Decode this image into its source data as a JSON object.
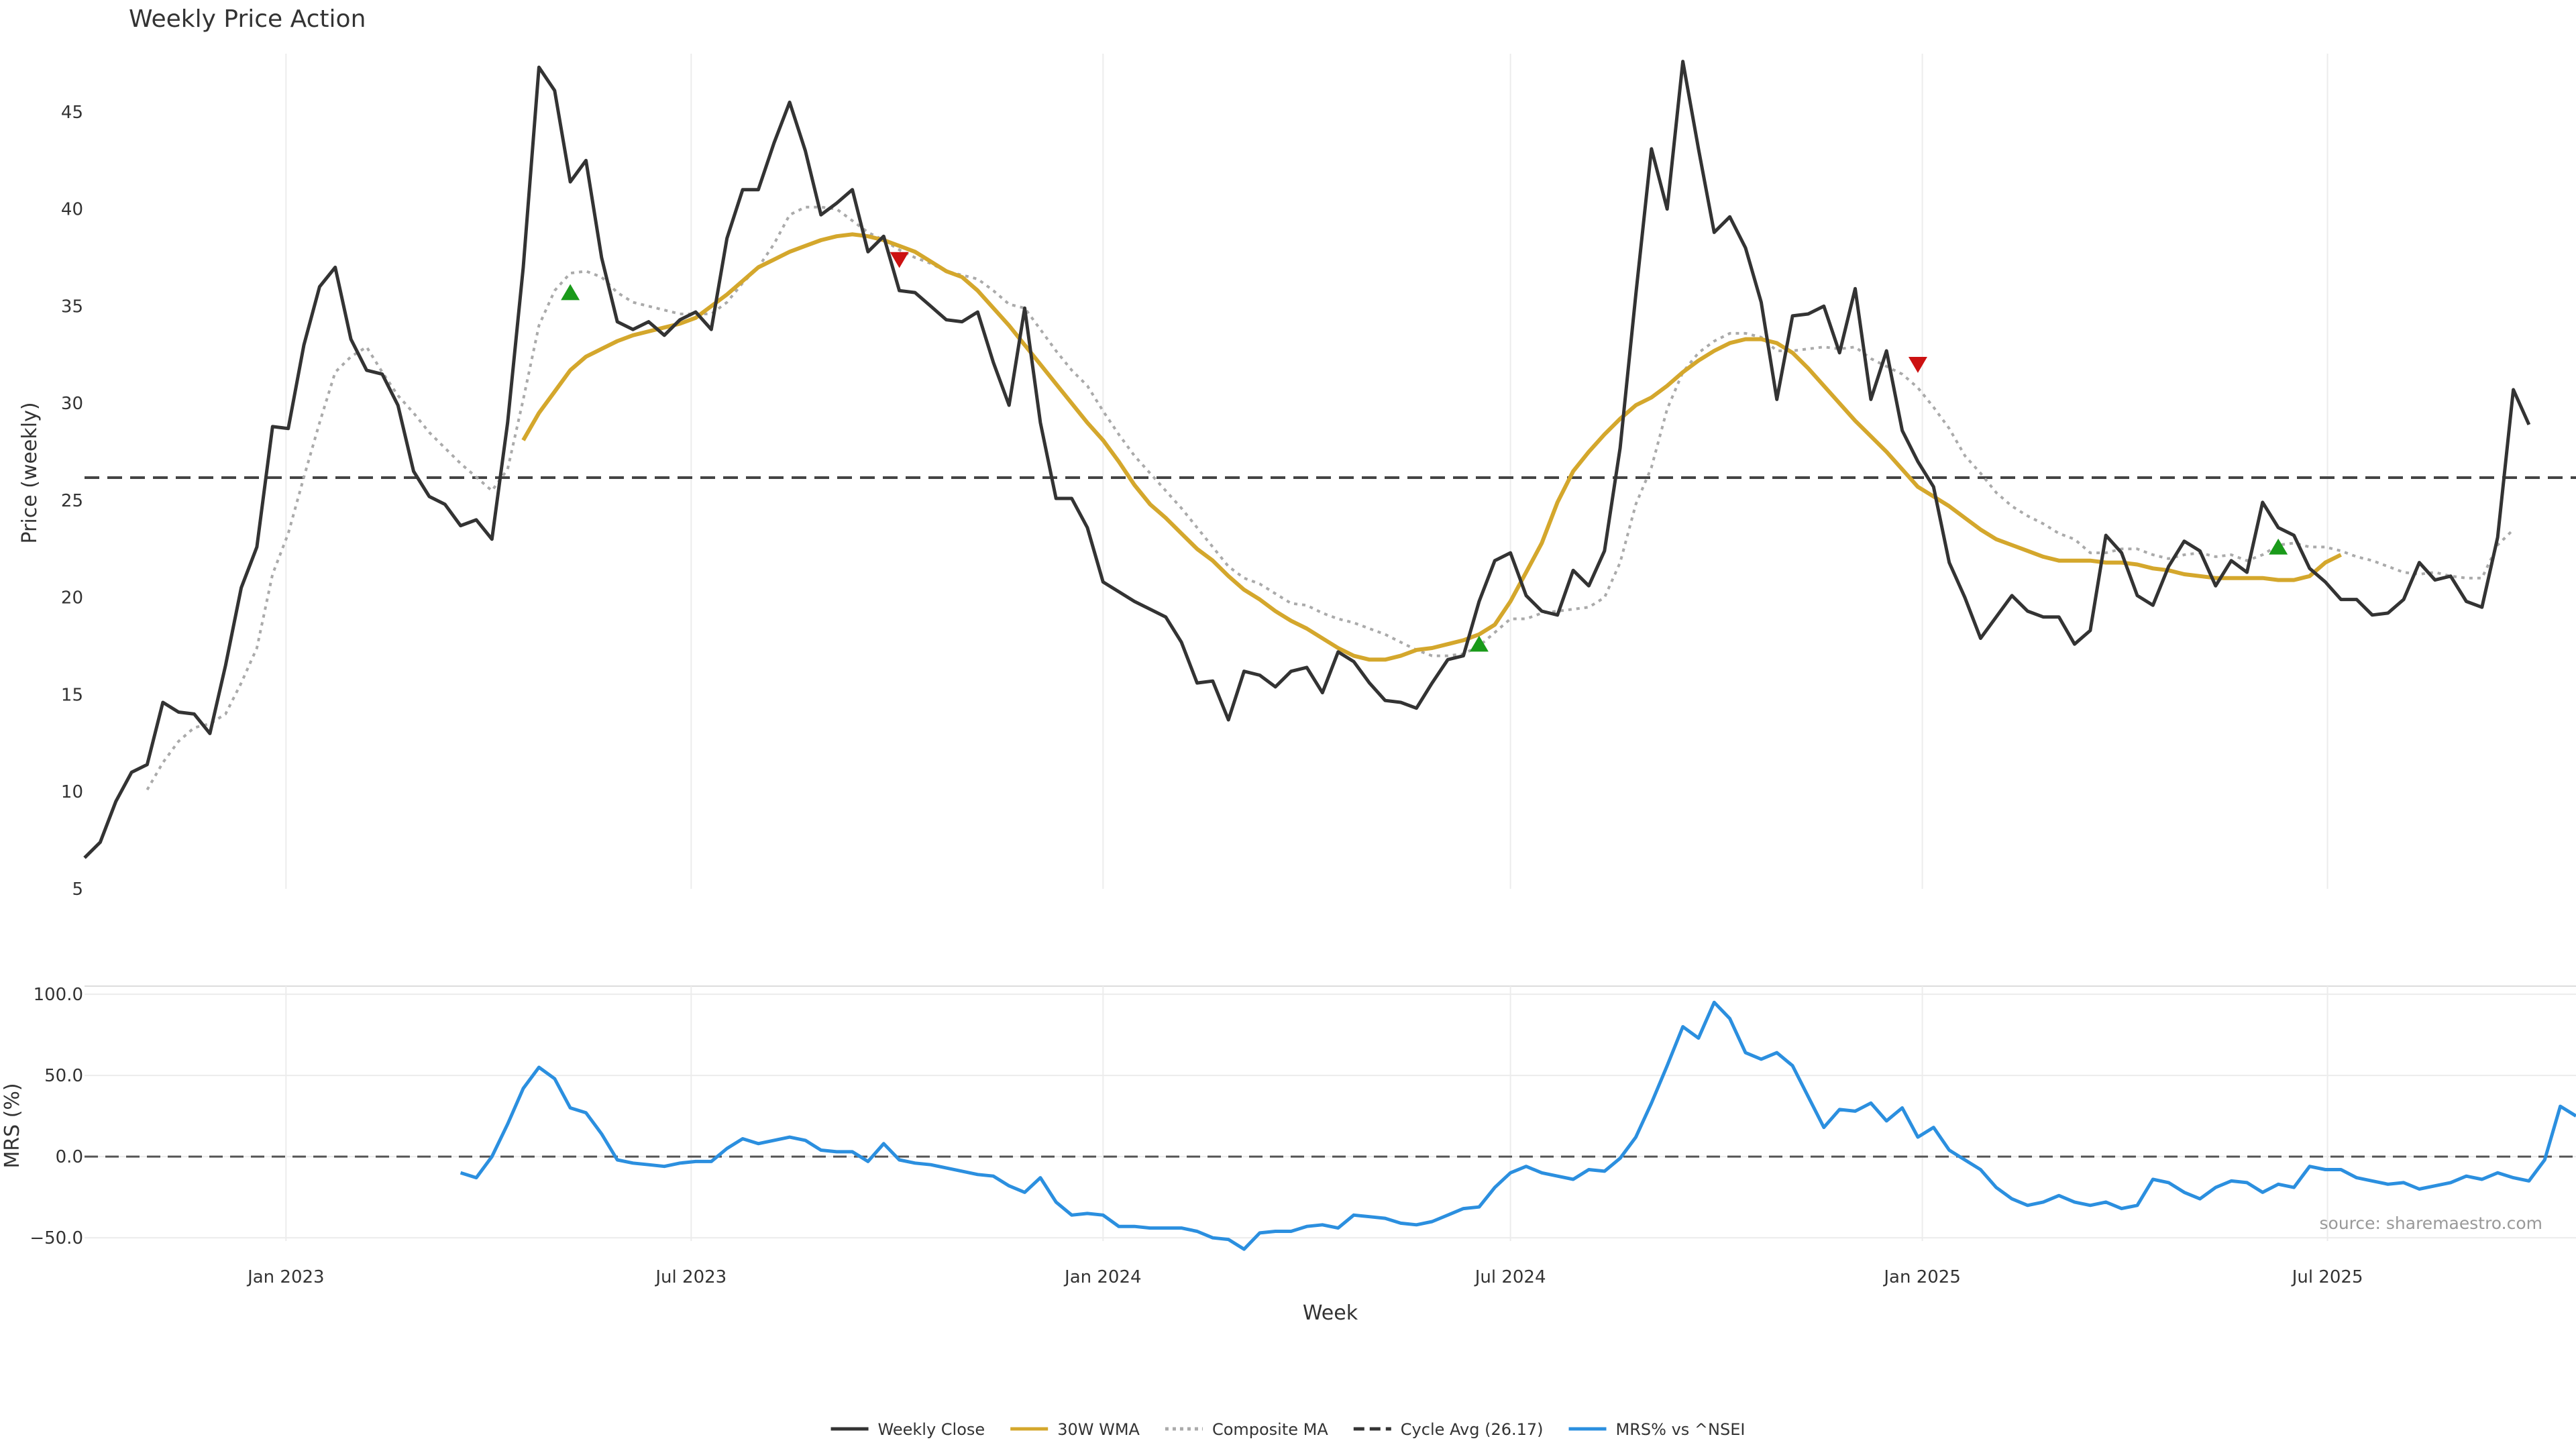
{
  "chart_data": [
    {
      "type": "line",
      "title": "Weekly Price Action",
      "ylabel": "Price (weekly)",
      "ylim": [
        5,
        48
      ],
      "yticks": [
        5,
        10,
        15,
        20,
        25,
        30,
        35,
        40,
        45
      ],
      "x_start": "2022-10-03",
      "x_step_days": 7,
      "x_end": "2025-10-20",
      "reference_line": {
        "name": "Cycle Avg (26.17)",
        "value": 26.17
      },
      "series": [
        {
          "name": "Weekly Close",
          "color": "#333333",
          "values": [
            6.6,
            7.4,
            9.5,
            11,
            11.4,
            14.6,
            14.1,
            14,
            13,
            16.5,
            20.5,
            22.6,
            28.8,
            28.7,
            33,
            36,
            37,
            33.3,
            31.7,
            31.5,
            29.9,
            26.5,
            25.2,
            24.8,
            23.7,
            24,
            23,
            29,
            37,
            47.3,
            46.1,
            41.4,
            42.5,
            37.5,
            34.2,
            33.8,
            34.2,
            33.5,
            34.3,
            34.7,
            33.8,
            38.5,
            41,
            41,
            43.4,
            45.5,
            43,
            39.7,
            40.3,
            41,
            37.8,
            38.6,
            35.8,
            35.7,
            35,
            34.3,
            34.2,
            34.7,
            32.1,
            29.9,
            34.9,
            29,
            25.1,
            25.1,
            23.6,
            20.8,
            20.3,
            19.8,
            19.4,
            19,
            17.7,
            15.6,
            15.7,
            13.7,
            16.2,
            16,
            15.4,
            16.2,
            16.4,
            15.1,
            17.2,
            16.7,
            15.6,
            14.7,
            14.6,
            14.3,
            15.6,
            16.8,
            17,
            19.8,
            21.9,
            22.3,
            20.1,
            19.3,
            19.1,
            21.4,
            20.6,
            22.4,
            27.7,
            35.6,
            43.1,
            40,
            47.6,
            43.1,
            38.8,
            39.6,
            38,
            35.2,
            30.2,
            34.5,
            34.6,
            35,
            32.6,
            35.9,
            30.2,
            32.7,
            28.6,
            27,
            25.7,
            21.8,
            20,
            17.9,
            19,
            20.1,
            19.3,
            19,
            19,
            17.6,
            18.3,
            23.2,
            22.3,
            20.1,
            19.6,
            21.6,
            22.9,
            22.4,
            20.6,
            21.9,
            21.3,
            24.9,
            23.6,
            23.2,
            21.5,
            20.8,
            19.9,
            19.9,
            19.1,
            19.2,
            19.9,
            21.8,
            20.9,
            21.1,
            19.8,
            19.5,
            23.1,
            30.7,
            28.9
          ]
        },
        {
          "name": "30W WMA",
          "color": "#d4a72c",
          "values": [
            null,
            null,
            null,
            null,
            null,
            null,
            null,
            null,
            null,
            null,
            null,
            null,
            null,
            null,
            null,
            null,
            null,
            null,
            null,
            null,
            null,
            null,
            null,
            null,
            null,
            null,
            null,
            null,
            28.1,
            29.5,
            30.6,
            31.7,
            32.4,
            32.8,
            33.2,
            33.5,
            33.7,
            33.9,
            34.1,
            34.4,
            35,
            35.6,
            36.3,
            37,
            37.4,
            37.8,
            38.1,
            38.4,
            38.6,
            38.7,
            38.6,
            38.4,
            38.1,
            37.8,
            37.3,
            36.8,
            36.5,
            35.8,
            34.9,
            34,
            33,
            32,
            31,
            30,
            29,
            28.1,
            27,
            25.8,
            24.8,
            24.1,
            23.3,
            22.5,
            21.9,
            21.1,
            20.4,
            19.9,
            19.3,
            18.8,
            18.4,
            17.9,
            17.4,
            17,
            16.8,
            16.8,
            17,
            17.3,
            17.4,
            17.6,
            17.8,
            18.1,
            18.6,
            19.8,
            21.3,
            22.8,
            24.9,
            26.5,
            27.5,
            28.4,
            29.2,
            29.9,
            30.3,
            30.9,
            31.6,
            32.2,
            32.7,
            33.1,
            33.3,
            33.3,
            33.1,
            32.6,
            31.8,
            30.9,
            30,
            29.1,
            28.3,
            27.5,
            26.6,
            25.7,
            25.2,
            24.7,
            24.1,
            23.5,
            23,
            22.7,
            22.4,
            22.1,
            21.9,
            21.9,
            21.9,
            21.8,
            21.8,
            21.7,
            21.5,
            21.4,
            21.2,
            21.1,
            21,
            21,
            21,
            21,
            20.9,
            20.9,
            21.1,
            21.8,
            22.2
          ]
        },
        {
          "name": "Composite MA",
          "color": "#aaaaaa",
          "values": [
            null,
            null,
            null,
            null,
            10.1,
            11.5,
            12.6,
            13.3,
            13.5,
            14,
            15.6,
            17.4,
            21.2,
            23.3,
            26.2,
            29,
            31.6,
            32.4,
            32.9,
            31.6,
            30.4,
            29.5,
            28.5,
            27.7,
            26.9,
            26.2,
            25.5,
            26.6,
            30.2,
            34,
            35.8,
            36.7,
            36.8,
            36.5,
            35.7,
            35.2,
            35,
            34.8,
            34.6,
            34.6,
            34.6,
            35.2,
            36.2,
            37,
            38.2,
            39.7,
            40.1,
            40.1,
            40,
            39.4,
            38.8,
            38.4,
            37.9,
            37.5,
            37.2,
            36.8,
            36.6,
            36.4,
            35.8,
            35.1,
            34.9,
            33.8,
            32.7,
            31.7,
            30.9,
            29.6,
            28.4,
            27.3,
            26.4,
            25.5,
            24.6,
            23.6,
            22.6,
            21.6,
            21,
            20.7,
            20.2,
            19.7,
            19.6,
            19.2,
            18.9,
            18.7,
            18.4,
            18.1,
            17.7,
            17.3,
            17,
            17,
            17.1,
            17.5,
            18.2,
            18.9,
            18.9,
            19.2,
            19.3,
            19.4,
            19.5,
            20,
            21.8,
            24.8,
            26.7,
            29.7,
            31.6,
            32.6,
            33.2,
            33.6,
            33.6,
            33.4,
            32.7,
            32.7,
            32.8,
            32.9,
            32.8,
            32.9,
            32.3,
            31.9,
            31.5,
            30.8,
            29.8,
            28.7,
            27.3,
            26.4,
            25.4,
            24.7,
            24.2,
            23.8,
            23.3,
            23,
            22.3,
            22.3,
            22.5,
            22.5,
            22.2,
            22,
            22.2,
            22.3,
            22.1,
            22.2,
            21.9,
            22.2,
            22.7,
            22.8,
            22.6,
            22.6,
            22.4,
            22.1,
            21.9,
            21.6,
            21.3,
            21.2,
            21.3,
            21.1,
            21,
            21,
            22.7,
            23.5
          ]
        }
      ],
      "markers": [
        {
          "type": "buy",
          "color": "#1a9a1a",
          "x_index": 31,
          "y": 35.7
        },
        {
          "type": "sell",
          "color": "#cc1111",
          "x_index": 52,
          "y": 37.4
        },
        {
          "type": "buy",
          "color": "#1a9a1a",
          "x_index": 89,
          "y": 17.6
        },
        {
          "type": "sell",
          "color": "#cc1111",
          "x_index": 117,
          "y": 32
        },
        {
          "type": "buy",
          "color": "#1a9a1a",
          "x_index": 140,
          "y": 22.6
        }
      ]
    },
    {
      "type": "line",
      "xlabel": "Week",
      "ylabel": "MRS (%)",
      "ylim": [
        -52,
        105
      ],
      "yticks": [
        100,
        50,
        0,
        -50
      ],
      "ytick_labels": [
        "100.0",
        "50.0",
        "0.0",
        "−50.0"
      ],
      "xticks": [
        {
          "date": "2023-01-01",
          "label": "Jan 2023"
        },
        {
          "date": "2023-07-01",
          "label": "Jul 2023"
        },
        {
          "date": "2024-01-01",
          "label": "Jan 2024"
        },
        {
          "date": "2024-07-01",
          "label": "Jul 2024"
        },
        {
          "date": "2025-01-01",
          "label": "Jan 2025"
        },
        {
          "date": "2025-07-01",
          "label": "Jul 2025"
        }
      ],
      "reference_line": {
        "value": 0
      },
      "series": [
        {
          "name": "MRS% vs ^NSEI",
          "color": "#2b8fdf",
          "values": [
            null,
            null,
            null,
            null,
            null,
            null,
            null,
            null,
            null,
            null,
            null,
            null,
            null,
            null,
            null,
            null,
            null,
            null,
            null,
            null,
            null,
            null,
            null,
            null,
            -10,
            -13,
            0,
            20,
            42,
            55,
            48,
            30,
            27,
            14,
            -2,
            -4,
            -5,
            -6,
            -4,
            -3,
            -3,
            5,
            11,
            8,
            10,
            12,
            10,
            4,
            3,
            3,
            -3,
            8,
            -2,
            -4,
            -5,
            -7,
            -9,
            -11,
            -12,
            -18,
            -22,
            -13,
            -28,
            -36,
            -35,
            -36,
            -43,
            -43,
            -44,
            -44,
            -44,
            -46,
            -50,
            -51,
            -57,
            -47,
            -46,
            -46,
            -43,
            -42,
            -44,
            -36,
            -37,
            -38,
            -41,
            -42,
            -40,
            -36,
            -32,
            -31,
            -19,
            -10,
            -6,
            -10,
            -12,
            -14,
            -8,
            -9,
            -1,
            12,
            33,
            56,
            80,
            73,
            95,
            85,
            64,
            60,
            64,
            56,
            37,
            18,
            29,
            28,
            33,
            22,
            30,
            12,
            18,
            4,
            -2,
            -8,
            -19,
            -26,
            -30,
            -28,
            -24,
            -28,
            -30,
            -28,
            -32,
            -30,
            -14,
            -16,
            -22,
            -26,
            -19,
            -15,
            -16,
            -22,
            -17,
            -19,
            -6,
            -8,
            -8,
            -13,
            -15,
            -17,
            -16,
            -20,
            -18,
            -16,
            -12,
            -14,
            -10,
            -13,
            -15,
            -2,
            31,
            25
          ]
        }
      ],
      "annotation": "source: sharemaestro.com"
    }
  ],
  "legend": {
    "placement": "bottom-center",
    "items": [
      {
        "label": "Weekly Close",
        "color": "#333333",
        "style": "solid"
      },
      {
        "label": "30W WMA",
        "color": "#d4a72c",
        "style": "solid"
      },
      {
        "label": "Composite MA",
        "color": "#aaaaaa",
        "style": "dotted"
      },
      {
        "label": "Cycle Avg (26.17)",
        "color": "#333333",
        "style": "dashed"
      },
      {
        "label": "MRS% vs ^NSEI",
        "color": "#2b8fdf",
        "style": "solid"
      }
    ]
  }
}
